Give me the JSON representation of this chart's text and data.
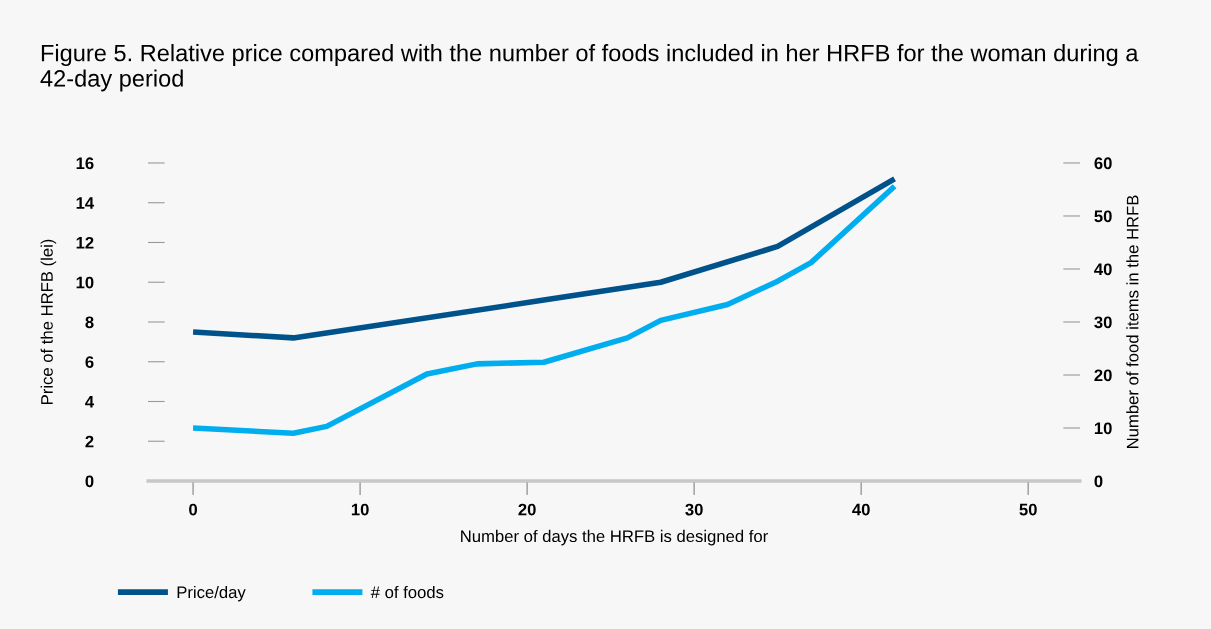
{
  "chart_data": {
    "type": "line",
    "title": "Figure 5. Relative price compared with the number of foods included in her HRFB for the woman during a 42-day period",
    "xlabel": "Number of days the HRFB is designed for",
    "ylabel": "Price of the HRFB (lei)",
    "y2label": "Number of food items in the HRFB",
    "xlim": [
      -2.7,
      53.1
    ],
    "xticks": [
      0,
      10,
      20,
      30,
      40,
      50
    ],
    "ylim": [
      0,
      16
    ],
    "yticks": [
      0,
      2,
      4,
      6,
      8,
      10,
      12,
      14,
      16
    ],
    "y2lim": [
      0,
      60
    ],
    "y2ticks": [
      0,
      10,
      20,
      30,
      40,
      50,
      60
    ],
    "grid": false,
    "legend": "bottom",
    "marker": "none",
    "line_style": "solid",
    "series": [
      {
        "name": "Price/day",
        "color": "#00538a",
        "x": [
          0,
          6,
          21,
          28,
          35,
          42
        ],
        "values": [
          7.5,
          7.2,
          9.1,
          10.0,
          11.8,
          15.2
        ]
      },
      {
        "name": "# of foods",
        "color": "#00aeef",
        "axis": "y2",
        "x": [
          0,
          6,
          8,
          14,
          17,
          21,
          26,
          28,
          32,
          35,
          37,
          42
        ],
        "values": [
          10,
          9,
          10.3,
          20.2,
          22.1,
          22.4,
          27,
          30.3,
          33.3,
          37.7,
          41.2,
          55.6
        ]
      }
    ]
  }
}
